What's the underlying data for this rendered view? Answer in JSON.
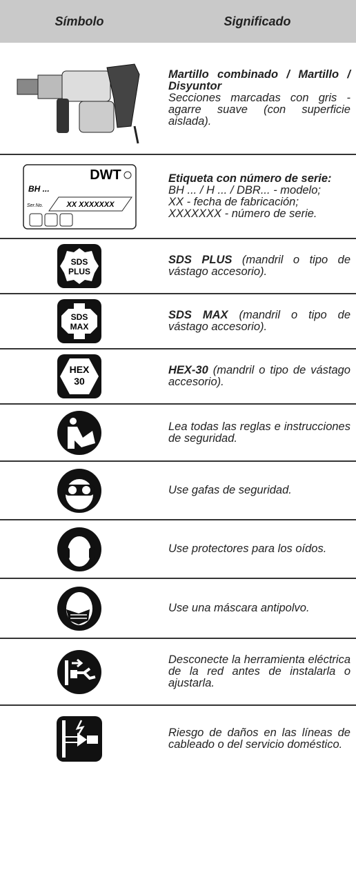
{
  "header": {
    "symbol": "Símbolo",
    "meaning": "Significado"
  },
  "rows": [
    {
      "bold": "Martillo combinado / Martillo / Disyuntor",
      "lines": [
        "Secciones marcadas con gris - agarre suave (con superficie aislada)."
      ]
    },
    {
      "bold": "Etiqueta con número de serie:",
      "lines": [
        "BH ... / H ... / DBR... - modelo;",
        "XX - fecha de fabricación;",
        "XXXXXXX - número de serie."
      ],
      "label": {
        "brand": "DWT",
        "model": "BH ...",
        "serial_caption": "Ser.No.",
        "serial": "XX XXXXXXX"
      }
    },
    {
      "bold": "SDS PLUS",
      "lines": [
        "(mandril o tipo de vástago accesorio)."
      ],
      "icon": [
        "SDS",
        "PLUS"
      ]
    },
    {
      "bold": "SDS MAX",
      "lines": [
        "(mandril o tipo de vástago accesorio)."
      ],
      "icon": [
        "SDS",
        "MAX"
      ]
    },
    {
      "bold": "HEX-30",
      "lines": [
        "(mandril o tipo de vástago accesorio)."
      ],
      "icon": [
        "HEX",
        "30"
      ]
    },
    {
      "lines": [
        "Lea todas las reglas e instrucciones de seguridad."
      ]
    },
    {
      "lines": [
        "Use gafas de seguridad."
      ]
    },
    {
      "lines": [
        "Use protectores para los oídos."
      ]
    },
    {
      "lines": [
        "Use una máscara antipolvo."
      ]
    },
    {
      "lines": [
        "Desconecte la herramienta eléctrica de la red antes de instalarla o ajustarla."
      ]
    },
    {
      "lines": [
        "Riesgo de daños en las líneas de cableado o del servicio doméstico."
      ]
    }
  ]
}
